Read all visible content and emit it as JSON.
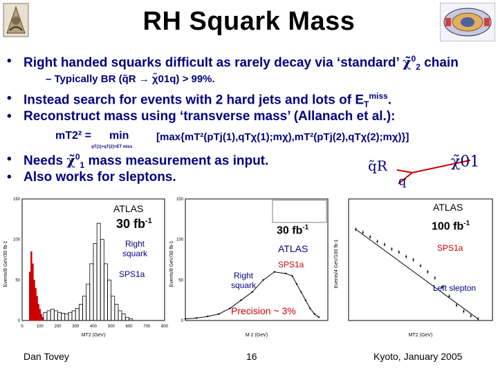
{
  "slide": {
    "title": "RH Squark Mass",
    "bullets": [
      "Right handed squarks difficult as rarely decay via ‘standard’ ",
      "Instead search for events with 2 hard jets and lots of E",
      "Reconstruct mass using ‘transverse mass’ (Allanach et al.):",
      " mass measurement as input.",
      "Also works for sleptons."
    ],
    "bullet1_tail": " chain",
    "bullet2_sup": "miss",
    "bullet3_prefix": "Needs ",
    "chi_symbol": "χ̃",
    "chi_sup": "0",
    "chi_sub2": "2",
    "chi_sub1": "1",
    "sub_bullet": "– Typically BR (q̃R → χ̃01q) > 99%.",
    "formula": {
      "lhs": "mT2² =",
      "min": "min",
      "min_sub": "qT(1)+qT(2)=ET miss",
      "rhs": "[max{mT²(pTj(1),qTχ(1);mχ),mT²(pTj(2),qTχ(2);mχ)}]"
    },
    "diagram": {
      "squark_label": "q̃R",
      "quark_label": "q",
      "neutralino_label": "χ̃01"
    }
  },
  "plots": {
    "left": {
      "atlas": "ATLAS",
      "lumi": "30 fb-1",
      "label1": "Right squark",
      "label2": "SPS1a",
      "xlabel": "MT2 (GeV)",
      "ylabel": "Events/8 GeV/30 fb-1",
      "x_ticks": [
        "0",
        "100",
        "200",
        "300",
        "400",
        "500",
        "600",
        "700",
        "800"
      ],
      "y_ticks": [
        "0",
        "50",
        "100",
        "150"
      ]
    },
    "middle": {
      "lumi": "30 fb-1",
      "atlas": "ATLAS",
      "sps": "SPS1a",
      "label": "Right squark",
      "xlabel": "M 2 (GeV)",
      "ylabel": "Events/8 GeV/30 fb-1",
      "y_ticks": [
        "0",
        "50",
        "100",
        "150"
      ]
    },
    "right": {
      "atlas": "ATLAS",
      "lumi": "100 fb-1",
      "sps": "SPS1a",
      "label": "Left slepton",
      "xlabel": "MT2 (GeV)",
      "ylabel": "Events/4 GeV/100 fb-1"
    },
    "precision": "Precision ~ 3%"
  },
  "footer": {
    "author": "Dan Tovey",
    "page": "16",
    "venue": "Kyoto, January 2005"
  },
  "chart_data": [
    {
      "type": "bar",
      "title": "",
      "xlabel": "MT2 (GeV)",
      "ylabel": "Events/8 GeV/30 fb-1",
      "xlim": [
        0,
        800
      ],
      "ylim": [
        0,
        150
      ],
      "series": [
        {
          "name": "Right squark",
          "color": "#cc0000",
          "x": [
            40,
            48,
            56,
            64,
            72,
            80,
            88,
            96,
            104,
            112
          ],
          "values": [
            60,
            85,
            70,
            50,
            40,
            30,
            20,
            14,
            8,
            4
          ]
        },
        {
          "name": "",
          "color": "#000000",
          "x": [
            120,
            140,
            160,
            180,
            200,
            220,
            240,
            260,
            280,
            300,
            320,
            340,
            360,
            380,
            400,
            420,
            440,
            460,
            480,
            500,
            520,
            540,
            560,
            580,
            600
          ],
          "values": [
            10,
            12,
            14,
            12,
            10,
            9,
            8,
            10,
            12,
            15,
            20,
            30,
            45,
            70,
            95,
            120,
            100,
            70,
            50,
            30,
            20,
            12,
            8,
            4,
            2
          ]
        }
      ]
    },
    {
      "type": "line",
      "title": "",
      "xlabel": "M 2 (GeV)",
      "ylabel": "Events/8 GeV/30 fb-1",
      "ylim": [
        0,
        150
      ],
      "x": [
        0,
        50,
        100,
        150,
        200,
        250,
        300,
        350,
        400,
        450,
        480,
        500,
        520,
        540,
        560,
        580,
        600
      ],
      "values": [
        2,
        3,
        5,
        8,
        15,
        25,
        35,
        50,
        60,
        58,
        55,
        45,
        35,
        25,
        15,
        8,
        4
      ]
    },
    {
      "type": "scatter",
      "title": "",
      "xlabel": "MT2 (GeV)",
      "ylabel": "Events/4 GeV/100 fb-1",
      "x": [
        20,
        40,
        60,
        80,
        100,
        120,
        140,
        160,
        180,
        200,
        220,
        240,
        260,
        280,
        300,
        320,
        340,
        360
      ],
      "values": [
        60,
        58,
        55,
        52,
        50,
        47,
        45,
        42,
        40,
        36,
        32,
        28,
        22,
        16,
        10,
        6,
        3,
        1
      ]
    }
  ]
}
